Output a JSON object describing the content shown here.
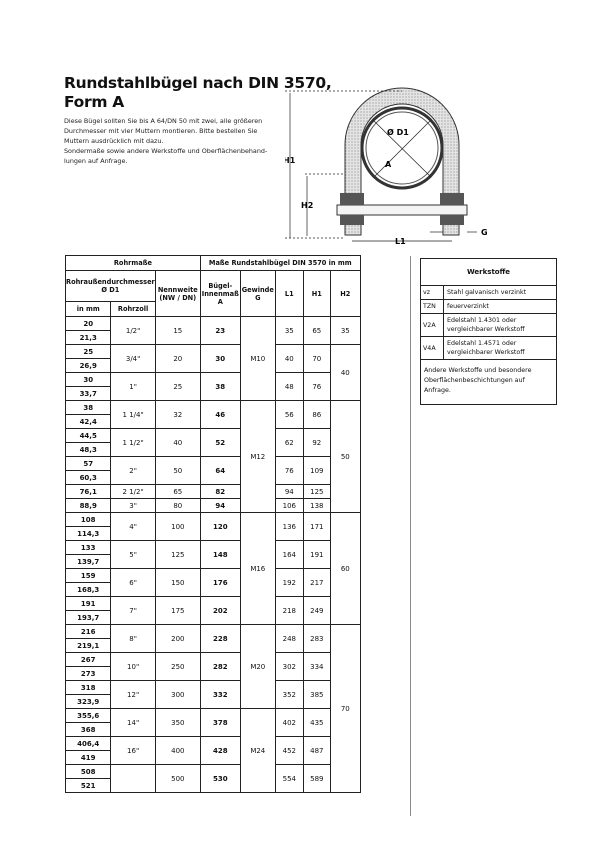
{
  "title_line1": "Rundstahlbügel nach DIN 3570,",
  "title_line2": "Form A",
  "intro": [
    "Diese Bügel sollten Sie bis A 64/DN 50 mit zwei, alle größeren",
    "Durchmesser mit vier Muttern montieren. Bitte bestellen Sie",
    "Muttern ausdrücklich mit dazu.",
    "Sondermaße sowie andere Werkstoffe und Oberflächenbehand-",
    "lungen auf Anfrage."
  ],
  "diagram": {
    "d1": "Ø D1",
    "a": "A",
    "h1": "H1",
    "h2": "H2",
    "l1": "L1",
    "g": "G"
  },
  "table": {
    "group_rohr": "Rohrmaße",
    "group_masse": "Maße Rundstahlbügel DIN 3570 in mm",
    "h_d1": "Rohraußendurchmesser Ø D1",
    "h_mm": "in mm",
    "h_zoll": "Rohrzoll",
    "h_nw": "Nennweite (NW / DN)",
    "h_a": "Bügel-Innenmaß A",
    "h_g": "Gewinde G",
    "h_l1": "L1",
    "h_h1": "H1",
    "h_h2": "H2",
    "rows": [
      {
        "d1": [
          "20",
          "21,3"
        ],
        "zoll": "1/2\"",
        "nw": "15",
        "a": "23",
        "l1": "35",
        "h1": "65"
      },
      {
        "d1": [
          "25",
          "26,9"
        ],
        "zoll": "3/4\"",
        "nw": "20",
        "a": "30",
        "l1": "40",
        "h1": "70"
      },
      {
        "d1": [
          "30",
          "33,7"
        ],
        "zoll": "1\"",
        "nw": "25",
        "a": "38",
        "l1": "48",
        "h1": "76"
      },
      {
        "d1": [
          "38",
          "42,4"
        ],
        "zoll": "1 1/4\"",
        "nw": "32",
        "a": "46",
        "l1": "56",
        "h1": "86"
      },
      {
        "d1": [
          "44,5",
          "48,3"
        ],
        "zoll": "1 1/2\"",
        "nw": "40",
        "a": "52",
        "l1": "62",
        "h1": "92"
      },
      {
        "d1": [
          "57",
          "60,3"
        ],
        "zoll": "2\"",
        "nw": "50",
        "a": "64",
        "l1": "76",
        "h1": "109"
      },
      {
        "d1": [
          "76,1"
        ],
        "zoll": "2 1/2\"",
        "nw": "65",
        "a": "82",
        "l1": "94",
        "h1": "125"
      },
      {
        "d1": [
          "88,9"
        ],
        "zoll": "3\"",
        "nw": "80",
        "a": "94",
        "l1": "106",
        "h1": "138"
      },
      {
        "d1": [
          "108",
          "114,3"
        ],
        "zoll": "4\"",
        "nw": "100",
        "a": "120",
        "l1": "136",
        "h1": "171"
      },
      {
        "d1": [
          "133",
          "139,7"
        ],
        "zoll": "5\"",
        "nw": "125",
        "a": "148",
        "l1": "164",
        "h1": "191"
      },
      {
        "d1": [
          "159",
          "168,3"
        ],
        "zoll": "6\"",
        "nw": "150",
        "a": "176",
        "l1": "192",
        "h1": "217"
      },
      {
        "d1": [
          "191",
          "193,7"
        ],
        "zoll": "7\"",
        "nw": "175",
        "a": "202",
        "l1": "218",
        "h1": "249"
      },
      {
        "d1": [
          "216",
          "219,1"
        ],
        "zoll": "8\"",
        "nw": "200",
        "a": "228",
        "l1": "248",
        "h1": "283"
      },
      {
        "d1": [
          "267",
          "273"
        ],
        "zoll": "10\"",
        "nw": "250",
        "a": "282",
        "l1": "302",
        "h1": "334"
      },
      {
        "d1": [
          "318",
          "323,9"
        ],
        "zoll": "12\"",
        "nw": "300",
        "a": "332",
        "l1": "352",
        "h1": "385"
      },
      {
        "d1": [
          "355,6",
          "368"
        ],
        "zoll": "14\"",
        "nw": "350",
        "a": "378",
        "l1": "402",
        "h1": "435"
      },
      {
        "d1": [
          "406,4",
          "419"
        ],
        "zoll": "16\"",
        "nw": "400",
        "a": "428",
        "l1": "452",
        "h1": "487"
      },
      {
        "d1": [
          "508",
          "521"
        ],
        "zoll": "",
        "nw": "500",
        "a": "530",
        "l1": "554",
        "h1": "589"
      }
    ],
    "gewinde": [
      {
        "value": "M10",
        "groups": 3
      },
      {
        "value": "M12",
        "groups": 5
      },
      {
        "value": "M16",
        "groups": 4
      },
      {
        "value": "M20",
        "groups": 3
      },
      {
        "value": "M24",
        "groups": 3
      }
    ],
    "h2": [
      {
        "value": "35",
        "groups": 1
      },
      {
        "value": "40",
        "groups": 2
      },
      {
        "value": "50",
        "groups": 5
      },
      {
        "value": "60",
        "groups": 4
      },
      {
        "value": "70",
        "groups": 6
      }
    ]
  },
  "materials": {
    "title": "Werkstoffe",
    "items": [
      {
        "code": "vz",
        "desc": "Stahl galvanisch verzinkt"
      },
      {
        "code": "TZN",
        "desc": "feuerverzinkt"
      },
      {
        "code": "V2A",
        "desc": "Edelstahl 1.4301 oder vergleichbarer Werkstoff"
      },
      {
        "code": "V4A",
        "desc": "Edelstahl 1.4571 oder vergleichbarer Werkstoff"
      }
    ],
    "note": "Andere Werkstoffe und besondere Oberflächenbeschichtungen auf Anfrage."
  }
}
